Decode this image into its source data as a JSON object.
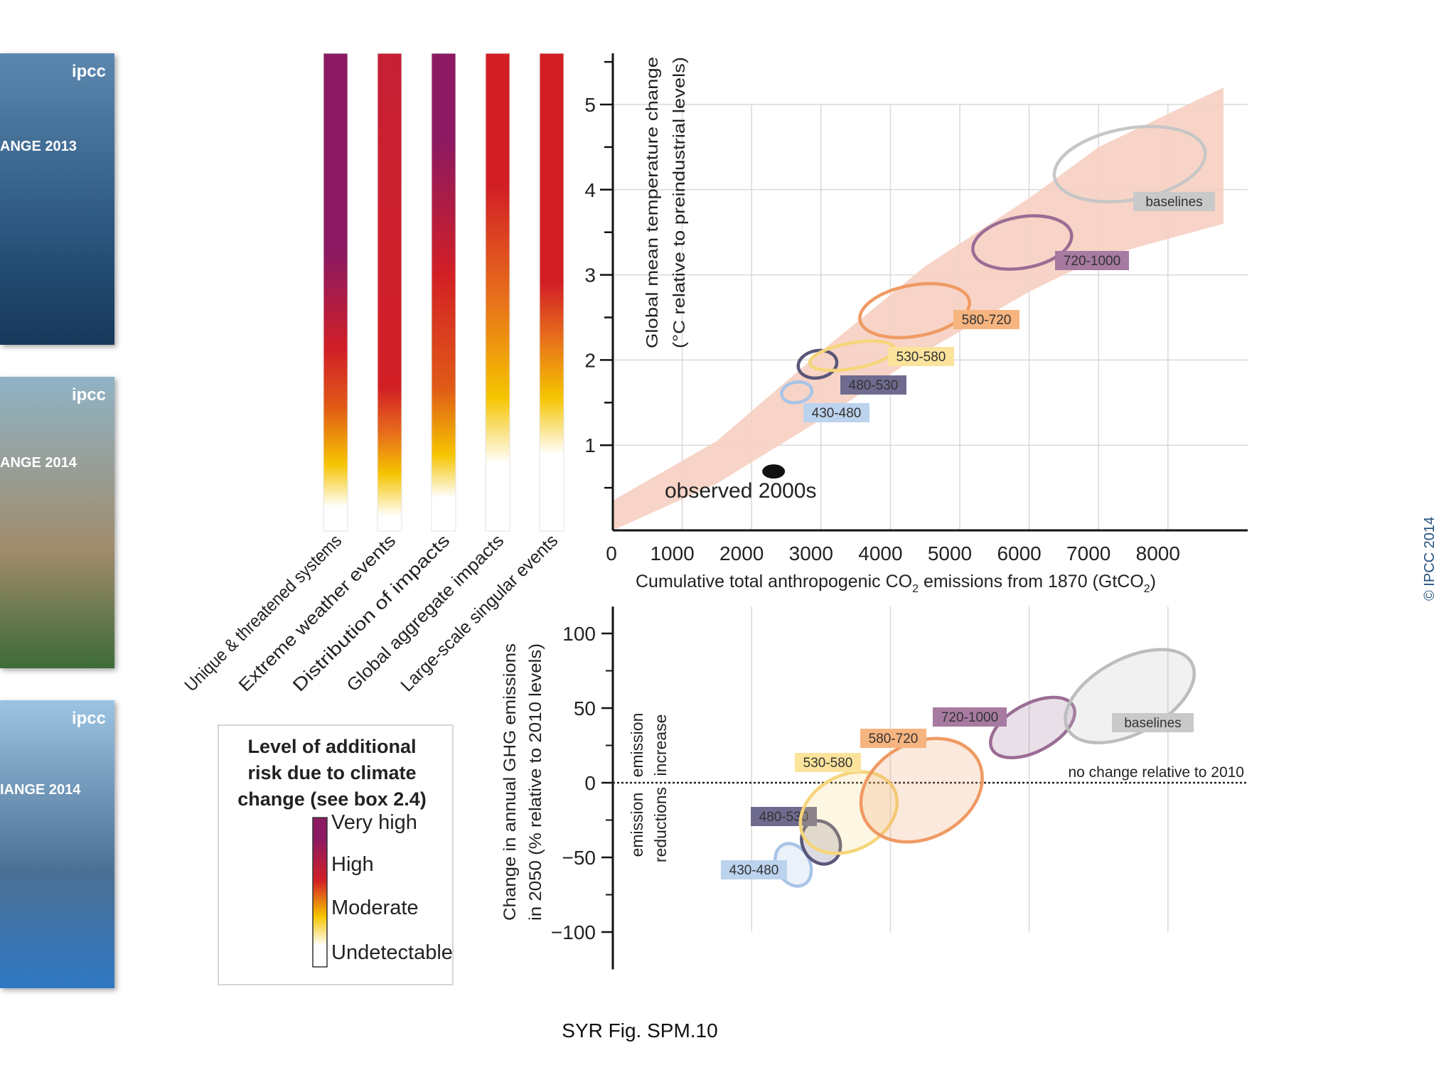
{
  "page": {
    "caption": "SYR Fig. SPM.10",
    "copyright": "© IPCC 2014"
  },
  "covers": [
    {
      "logo": "ipcc",
      "title": "ANGE 2013",
      "colors": [
        "#5c88b0",
        "#2c577f",
        "#16385a"
      ]
    },
    {
      "logo": "ipcc",
      "title": "ANGE 2014",
      "colors": [
        "#8fb3c6",
        "#a08b6a",
        "#3d6b39"
      ]
    },
    {
      "logo": "ipcc",
      "title": "IANGE 2014",
      "colors": [
        "#9cc4e2",
        "#4b6f94",
        "#2f78c4"
      ]
    }
  ],
  "colors": {
    "very_high": "#8b1a62",
    "high": "#d21f26",
    "moderate": "#f5c400",
    "undetectable": "#ffffff",
    "uncertainty_band": "#f6cfc1"
  },
  "risk_bars": {
    "categories": [
      "Unique & threatened systems",
      "Extreme weather events",
      "Distribution of impacts",
      "Global aggregate impacts",
      "Large-scale singular events"
    ],
    "gradients": [
      [
        [
          "#8b1a62",
          0
        ],
        [
          "#8b1a62",
          0.42
        ],
        [
          "#d21f26",
          0.62
        ],
        [
          "#e05a16",
          0.74
        ],
        [
          "#f5c400",
          0.86
        ],
        [
          "#ffffff",
          0.95
        ]
      ],
      [
        [
          "#c62035",
          0
        ],
        [
          "#d21f26",
          0.7
        ],
        [
          "#e8721a",
          0.8
        ],
        [
          "#f5c400",
          0.88
        ],
        [
          "#ffffff",
          0.97
        ]
      ],
      [
        [
          "#8b1a62",
          0
        ],
        [
          "#8b1a62",
          0.18
        ],
        [
          "#d21f26",
          0.46
        ],
        [
          "#e05a16",
          0.7
        ],
        [
          "#f5c400",
          0.84
        ],
        [
          "#ffffff",
          0.93
        ]
      ],
      [
        [
          "#d21f26",
          0
        ],
        [
          "#d21f26",
          0.28
        ],
        [
          "#e8721a",
          0.52
        ],
        [
          "#f5c400",
          0.72
        ],
        [
          "#ffffff",
          0.86
        ]
      ],
      [
        [
          "#d21f26",
          0
        ],
        [
          "#d21f26",
          0.48
        ],
        [
          "#e8721a",
          0.6
        ],
        [
          "#f5c400",
          0.72
        ],
        [
          "#ffffff",
          0.84
        ]
      ]
    ]
  },
  "legend": {
    "title_lines": [
      "Level of additional",
      "risk due to climate",
      "change (see box 2.4)"
    ],
    "levels": [
      "Very high",
      "High",
      "Moderate",
      "Undetectable"
    ]
  },
  "chart_data": [
    {
      "type": "scatter",
      "xlabel_parts": [
        "Cumulative total anthropogenic CO",
        "2",
        " emissions from 1870 (GtCO",
        "2",
        ")"
      ],
      "ylabel_lines": [
        "Global mean temperature change",
        "(°C relative to preindustrial levels)"
      ],
      "xlim": [
        0,
        9000
      ],
      "ylim": [
        0,
        5.5
      ],
      "xticks": [
        0,
        1000,
        2000,
        3000,
        4000,
        5000,
        6000,
        7000,
        8000
      ],
      "yticks": [
        1,
        2,
        3,
        4,
        5
      ],
      "grid": true,
      "observed": {
        "label": "observed 2000s",
        "x": 1600,
        "y": 0.75
      },
      "band_upper": [
        [
          0,
          0.35
        ],
        [
          1500,
          1.05
        ],
        [
          3000,
          2.1
        ],
        [
          4500,
          3.1
        ],
        [
          6000,
          3.9
        ],
        [
          7000,
          4.5
        ],
        [
          8800,
          5.2
        ]
      ],
      "band_lower": [
        [
          0,
          0.0
        ],
        [
          1500,
          0.55
        ],
        [
          3000,
          1.3
        ],
        [
          4500,
          2.1
        ],
        [
          6000,
          2.8
        ],
        [
          7000,
          3.2
        ],
        [
          8800,
          3.6
        ]
      ],
      "series": [
        {
          "name": "430-480",
          "color": "#a8c4e6",
          "label_bg": "#bcd3ee",
          "ellipse": {
            "cx": 2650,
            "cy": 1.62,
            "rx": 220,
            "ry": 0.12
          }
        },
        {
          "name": "480-530",
          "color": "#5a5679",
          "label_bg": "#6f6b8f",
          "ellipse": {
            "cx": 2950,
            "cy": 1.95,
            "rx": 280,
            "ry": 0.16
          }
        },
        {
          "name": "530-580",
          "color": "#f6d57a",
          "label_bg": "#fbe39c",
          "ellipse": {
            "cx": 3450,
            "cy": 2.05,
            "rx": 620,
            "ry": 0.15
          }
        },
        {
          "name": "580-720",
          "color": "#ef9a63",
          "label_bg": "#f6b47f",
          "ellipse": {
            "cx": 4350,
            "cy": 2.58,
            "rx": 800,
            "ry": 0.3
          }
        },
        {
          "name": "720-1000",
          "color": "#9b6c95",
          "label_bg": "#a77aa1",
          "ellipse": {
            "cx": 5900,
            "cy": 3.38,
            "rx": 720,
            "ry": 0.3
          }
        },
        {
          "name": "baselines",
          "color": "#c6c6c6",
          "label_bg": "#c9c9c9",
          "ellipse": {
            "cx": 7450,
            "cy": 4.3,
            "rx": 1100,
            "ry": 0.42
          }
        }
      ]
    },
    {
      "type": "scatter",
      "xlabel": "",
      "ylabel_lines": [
        "Change in annual GHG emissions",
        "in 2050 (% relative to 2010 levels)"
      ],
      "xlim": [
        0,
        9000
      ],
      "ylim": [
        -125,
        118
      ],
      "yticks": [
        100,
        50,
        0,
        -50,
        -100
      ],
      "ytick_labels": [
        "100",
        "50",
        "0",
        "−50",
        "−100"
      ],
      "grid": true,
      "zero_line_label": "no change relative to 2010",
      "region_labels": {
        "increase": [
          "emission",
          "increase"
        ],
        "reductions": [
          "emission",
          "reductions"
        ]
      },
      "series": [
        {
          "name": "430-480",
          "color": "#a8c4e6",
          "label_bg": "#bcd3ee",
          "ellipse": {
            "cx": 2600,
            "cy": -55,
            "rx": 260,
            "ry": 15
          }
        },
        {
          "name": "480-530",
          "color": "#5a5679",
          "label_bg": "#6f6b8f",
          "ellipse": {
            "cx": 3000,
            "cy": -40,
            "rx": 290,
            "ry": 15
          }
        },
        {
          "name": "530-580",
          "color": "#f6d57a",
          "label_bg": "#fbe39c",
          "ellipse": {
            "cx": 3400,
            "cy": -20,
            "rx": 800,
            "ry": 25
          }
        },
        {
          "name": "580-720",
          "color": "#ef9a63",
          "label_bg": "#f6b47f",
          "ellipse": {
            "cx": 4450,
            "cy": -5,
            "rx": 1000,
            "ry": 32
          }
        },
        {
          "name": "720-1000",
          "color": "#9b6c95",
          "label_bg": "#a77aa1",
          "ellipse": {
            "cx": 6050,
            "cy": 37,
            "rx": 720,
            "ry": 16
          }
        },
        {
          "name": "baselines",
          "color": "#bdbdbd",
          "label_bg": "#c9c9c9",
          "ellipse": {
            "cx": 7450,
            "cy": 58,
            "rx": 1100,
            "ry": 25
          }
        }
      ]
    }
  ]
}
